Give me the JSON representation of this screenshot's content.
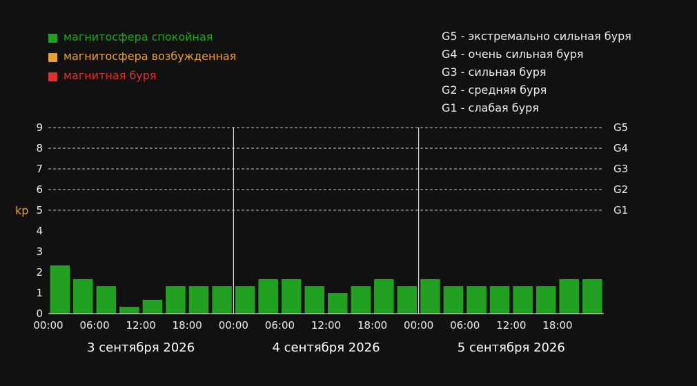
{
  "legend": [
    {
      "label": "магнитосфера спокойная",
      "color": "#22a022"
    },
    {
      "label": "магнитосфера возбужденная",
      "color": "#e8a030"
    },
    {
      "label": "магнитная буря",
      "color": "#dd3030"
    }
  ],
  "storm_scale": [
    "G5 - экстремально сильная буря",
    "G4 - очень сильная буря",
    "G3 - сильная буря",
    "G2 - средняя буря",
    "G1 - слабая буря"
  ],
  "chart_data": {
    "type": "bar",
    "ylabel": "kp",
    "ylabel_color": "#e8a030",
    "ylim": [
      0,
      9
    ],
    "y_ticks": [
      0,
      1,
      2,
      3,
      4,
      5,
      6,
      7,
      8,
      9
    ],
    "g_levels": [
      {
        "label": "G1",
        "value": 5
      },
      {
        "label": "G2",
        "value": 6
      },
      {
        "label": "G3",
        "value": 7
      },
      {
        "label": "G4",
        "value": 8
      },
      {
        "label": "G5",
        "value": 9
      }
    ],
    "x_tick_labels": [
      "00:00",
      "06:00",
      "12:00",
      "18:00",
      "00:00",
      "06:00",
      "12:00",
      "18:00",
      "00:00",
      "06:00",
      "12:00",
      "18:00"
    ],
    "days": [
      "3 сентября 2026",
      "4 сентября 2026",
      "5 сентября 2026"
    ],
    "values": [
      2.33,
      1.67,
      1.33,
      0.33,
      0.67,
      1.33,
      1.33,
      1.33,
      1.33,
      1.67,
      1.67,
      1.33,
      1.0,
      1.33,
      1.67,
      1.33,
      1.67,
      1.33,
      1.33,
      1.33,
      1.33,
      1.33,
      1.67,
      1.67
    ],
    "bar_color": "#22a022",
    "grid": "dashed"
  }
}
